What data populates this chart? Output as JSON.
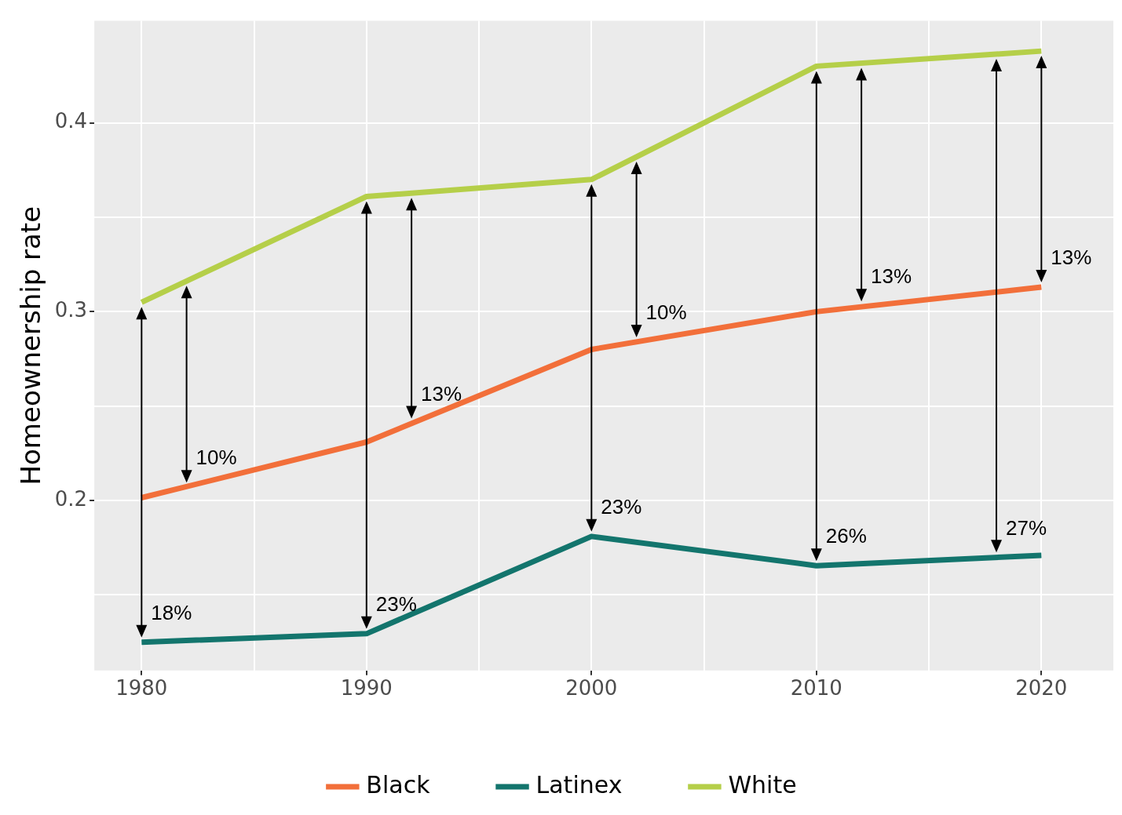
{
  "chart_data": {
    "type": "line",
    "ylabel": "Homeownership rate",
    "x": [
      1980,
      1990,
      2000,
      2010,
      2020
    ],
    "series": [
      {
        "name": "Black",
        "color": "#f26f3a",
        "values": [
          0.2015,
          0.231,
          0.28,
          0.3,
          0.313
        ]
      },
      {
        "name": "Latinex",
        "color": "#13756d",
        "values": [
          0.125,
          0.1295,
          0.181,
          0.1655,
          0.171
        ]
      },
      {
        "name": "White",
        "color": "#b5cf49",
        "values": [
          0.305,
          0.361,
          0.37,
          0.43,
          0.438
        ]
      }
    ],
    "xlim": [
      1977.9,
      2023.2
    ],
    "xticks": [
      1980,
      {
        "value": 1985,
        "label": null
      },
      1990,
      {
        "value": 1995,
        "label": null
      },
      2000,
      {
        "value": 2005,
        "label": null
      },
      2010,
      {
        "value": 2015,
        "label": null
      },
      2020
    ],
    "ylim": [
      0.11,
      0.454
    ],
    "yticks": [
      {
        "value": 0.15,
        "label": null
      },
      0.2,
      {
        "value": 0.25,
        "label": null
      },
      0.3,
      {
        "value": 0.35,
        "label": null
      },
      0.4
    ],
    "grid": true,
    "legend": "bottom",
    "marker": "none",
    "line_style": "solid",
    "annotations": [
      {
        "text": "18%",
        "x": 1980,
        "y": 0.125
      },
      {
        "text": "10%",
        "x": 1982,
        "y": 0.207
      },
      {
        "text": "23%",
        "x": 1990,
        "y": 0.1295
      },
      {
        "text": "13%",
        "x": 1992,
        "y": 0.241
      },
      {
        "text": "23%",
        "x": 2000,
        "y": 0.181
      },
      {
        "text": "10%",
        "x": 2002,
        "y": 0.284
      },
      {
        "text": "26%",
        "x": 2010,
        "y": 0.1655
      },
      {
        "text": "13%",
        "x": 2012,
        "y": 0.303
      },
      {
        "text": "27%",
        "x": 2018,
        "y": 0.17
      },
      {
        "text": "13%",
        "x": 2020,
        "y": 0.313
      }
    ]
  }
}
